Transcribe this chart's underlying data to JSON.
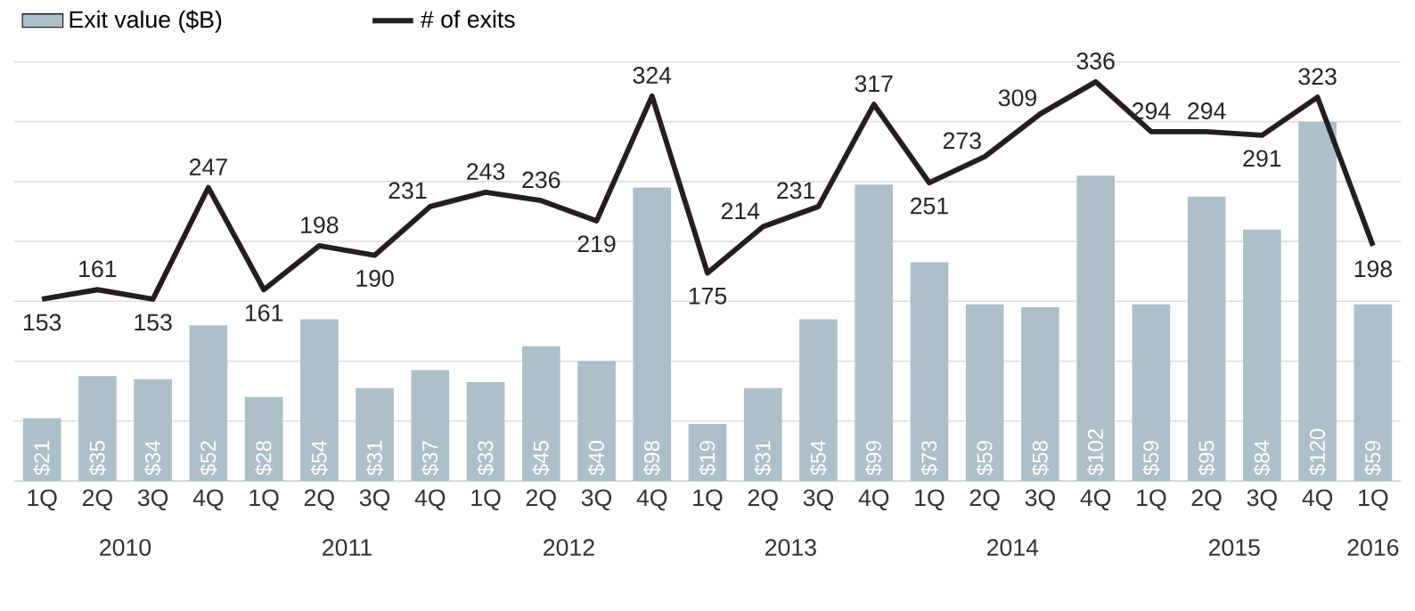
{
  "chart_data": {
    "type": "bar",
    "categories": [
      "1Q",
      "2Q",
      "3Q",
      "4Q",
      "1Q",
      "2Q",
      "3Q",
      "4Q",
      "1Q",
      "2Q",
      "3Q",
      "4Q",
      "1Q",
      "2Q",
      "3Q",
      "4Q",
      "1Q",
      "2Q",
      "3Q",
      "4Q",
      "1Q",
      "2Q",
      "3Q",
      "4Q",
      "1Q"
    ],
    "series": [
      {
        "name": "Exit value ($B)",
        "color": "#adbfc9",
        "values": [
          21,
          35,
          34,
          52,
          28,
          54,
          31,
          37,
          33,
          45,
          40,
          98,
          19,
          31,
          54,
          99,
          73,
          59,
          58,
          102,
          59,
          95,
          84,
          120,
          59
        ],
        "value_labels": [
          "$21",
          "$35",
          "$34",
          "$52",
          "$28",
          "$54",
          "$31",
          "$37",
          "$33",
          "$45",
          "$40",
          "$98",
          "$19",
          "$31",
          "$54",
          "$99",
          "$73",
          "$59",
          "$58",
          "$102",
          "$59",
          "$95",
          "$84",
          "$120",
          "$59"
        ]
      },
      {
        "name": "# of exits",
        "type": "line",
        "axis": "y2",
        "color": "#231f20",
        "values": [
          153,
          161,
          153,
          247,
          161,
          198,
          190,
          231,
          243,
          236,
          219,
          324,
          175,
          214,
          231,
          317,
          251,
          273,
          309,
          336,
          294,
          294,
          291,
          323,
          198
        ],
        "value_labels": [
          "153",
          "161",
          "153",
          "247",
          "161",
          "198",
          "190",
          "231",
          "243",
          "236",
          "219",
          "324",
          "175",
          "214",
          "231",
          "317",
          "251",
          "273",
          "309",
          "336",
          "294",
          "294",
          "291",
          "323",
          "198"
        ]
      }
    ],
    "grid": "y",
    "legend": "top left",
    "marker": "none",
    "line_style": "solid",
    "tick_labels": "x",
    "annotations": [
      "2010",
      "2011",
      "2012",
      "2013",
      "2014",
      "2015",
      "2016"
    ]
  }
}
